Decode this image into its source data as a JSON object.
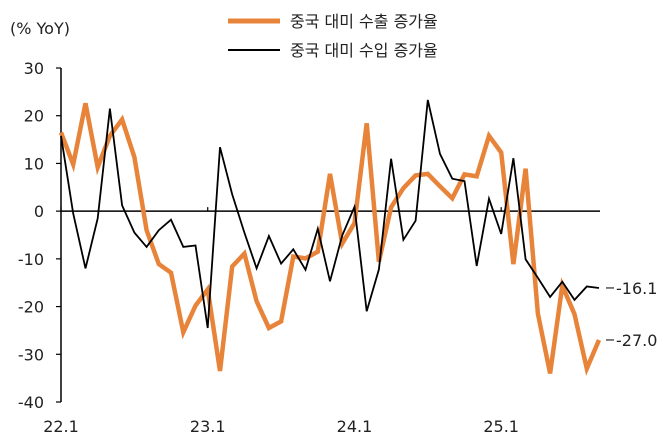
{
  "chart_data": {
    "type": "line",
    "ylabel": "(% YoY)",
    "ylim": [
      -40,
      30
    ],
    "yticks": [
      30,
      20,
      10,
      0,
      -10,
      -20,
      -30,
      -40
    ],
    "xtick_labels": [
      {
        "index": 0,
        "label": "22.1"
      },
      {
        "index": 12,
        "label": "23.1"
      },
      {
        "index": 24,
        "label": "24.1"
      },
      {
        "index": 36,
        "label": "25.1"
      }
    ],
    "grid": false,
    "legend": "top",
    "series": [
      {
        "name": "중국 대미 수출 증가율",
        "color": "#E8843A",
        "values": [
          16.5,
          9.8,
          22.6,
          9.2,
          15.8,
          19.2,
          11.3,
          -4.0,
          -11.1,
          -12.9,
          -25.4,
          -19.8,
          -16.4,
          -33.5,
          -11.6,
          -8.9,
          -18.9,
          -24.5,
          -23.1,
          -9.5,
          -9.9,
          -8.5,
          7.8,
          -6.8,
          -2.5,
          18.4,
          -10.6,
          0.8,
          4.8,
          7.5,
          7.8,
          5.2,
          2.7,
          7.7,
          7.3,
          15.8,
          12.3,
          -11.1,
          8.9,
          -21.5,
          -34.0,
          -15.6,
          -21.6,
          -33.0,
          -27.0
        ]
      },
      {
        "name": "중국 대미 수입 증가율",
        "color": "#000000",
        "values": [
          15.8,
          -0.5,
          -12.0,
          -1.5,
          21.5,
          1.2,
          -4.5,
          -7.5,
          -4.0,
          -1.8,
          -7.5,
          -7.2,
          -24.5,
          13.4,
          3.5,
          -4.5,
          -12.0,
          -5.2,
          -11.0,
          -8.0,
          -12.3,
          -3.7,
          -14.7,
          -5.1,
          0.9,
          -21.0,
          -12.2,
          11.0,
          -6.0,
          -2.0,
          23.3,
          12.0,
          6.8,
          6.3,
          -11.5,
          2.6,
          -4.8,
          11.1,
          -10.1,
          -14.0,
          -18.0,
          -14.8,
          -18.6,
          -15.8,
          -16.1
        ]
      }
    ],
    "annotations": [
      {
        "series": 1,
        "text": "-16.1"
      },
      {
        "series": 0,
        "text": "-27.0"
      }
    ]
  }
}
